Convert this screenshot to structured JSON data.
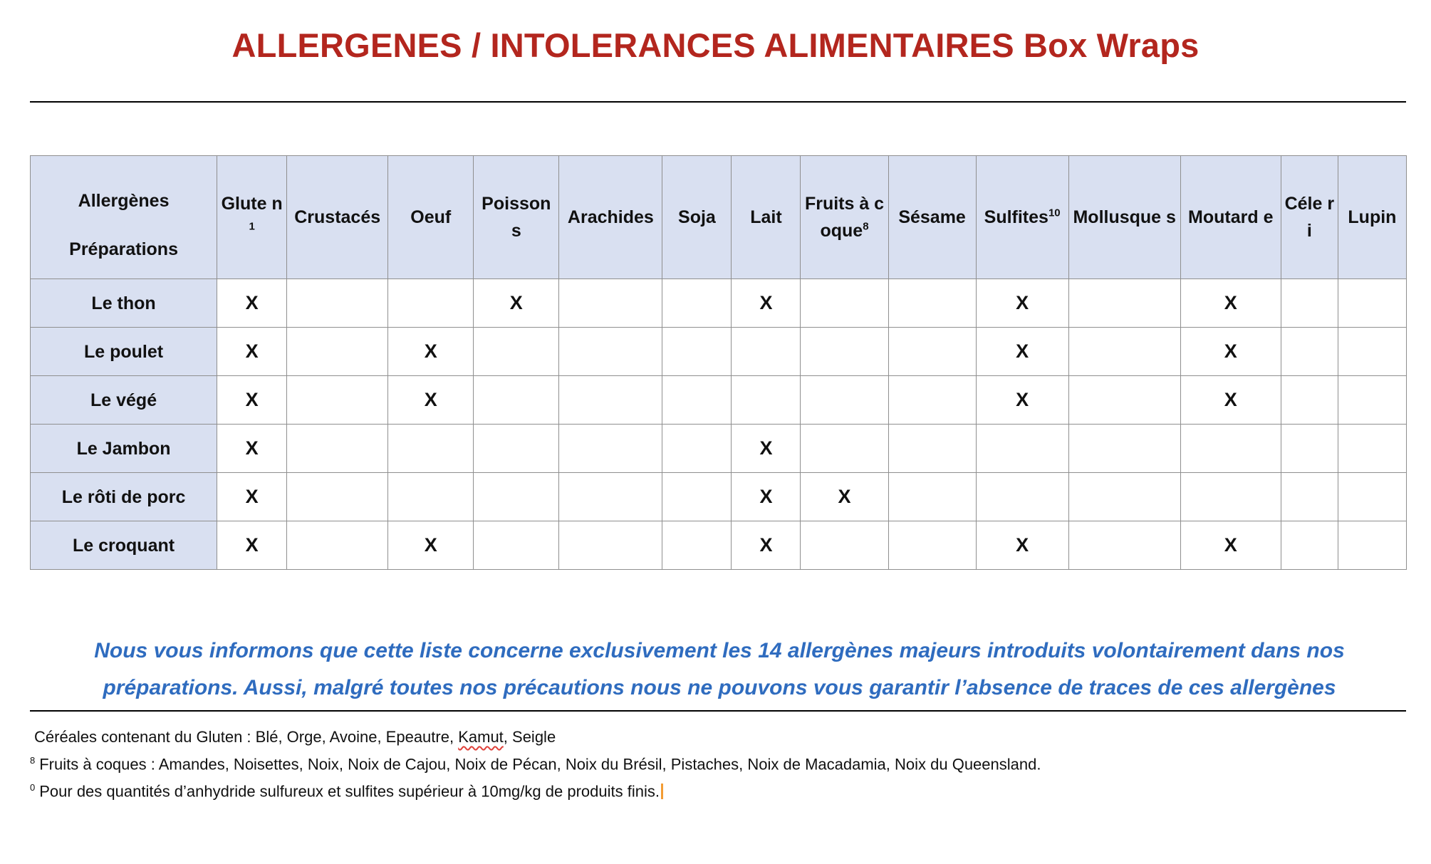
{
  "title": "ALLERGENES / INTOLERANCES ALIMENTAIRES Box Wraps",
  "table": {
    "corner_top": "Allergènes",
    "corner_bottom": "Préparations",
    "columns": [
      {
        "label": "Glute n",
        "sup": "1"
      },
      {
        "label": "Crustacés",
        "sup": ""
      },
      {
        "label": "Oeuf",
        "sup": ""
      },
      {
        "label": "Poisson s",
        "sup": ""
      },
      {
        "label": "Arachides",
        "sup": ""
      },
      {
        "label": "Soja",
        "sup": ""
      },
      {
        "label": "Lait",
        "sup": ""
      },
      {
        "label": "Fruits à coque",
        "sup": "8"
      },
      {
        "label": "Sésame",
        "sup": ""
      },
      {
        "label": "Sulfites",
        "sup": "10"
      },
      {
        "label": "Mollusque s",
        "sup": ""
      },
      {
        "label": "Moutard e",
        "sup": ""
      },
      {
        "label": "Céle ri",
        "sup": ""
      },
      {
        "label": "Lupin",
        "sup": ""
      }
    ],
    "mark_symbol": "X",
    "rows": [
      {
        "name": "Le thon",
        "marks": [
          1,
          0,
          0,
          1,
          0,
          0,
          1,
          0,
          0,
          1,
          0,
          1,
          0,
          0
        ]
      },
      {
        "name": "Le poulet",
        "marks": [
          1,
          0,
          1,
          0,
          0,
          0,
          0,
          0,
          0,
          1,
          0,
          1,
          0,
          0
        ]
      },
      {
        "name": "Le végé",
        "marks": [
          1,
          0,
          1,
          0,
          0,
          0,
          0,
          0,
          0,
          1,
          0,
          1,
          0,
          0
        ]
      },
      {
        "name": "Le Jambon",
        "marks": [
          1,
          0,
          0,
          0,
          0,
          0,
          1,
          0,
          0,
          0,
          0,
          0,
          0,
          0
        ]
      },
      {
        "name": "Le rôti de porc",
        "marks": [
          1,
          0,
          0,
          0,
          0,
          0,
          1,
          1,
          0,
          0,
          0,
          0,
          0,
          0
        ]
      },
      {
        "name": "Le croquant",
        "marks": [
          1,
          0,
          1,
          0,
          0,
          0,
          1,
          0,
          0,
          1,
          0,
          1,
          0,
          0
        ]
      }
    ]
  },
  "notice": "Nous vous informons que cette liste concerne exclusivement les 14 allergènes majeurs introduits volontairement dans nos préparations. Aussi, malgré toutes nos précautions nous ne pouvons vous garantir l’absence de traces de ces allergènes",
  "notes": {
    "gluten_prefix": "Céréales contenant du Gluten : Blé, Orge, Avoine, Epeautre, ",
    "gluten_flagged": "Kamut",
    "gluten_suffix": ", Seigle",
    "nuts_marker": "8",
    "nuts": "Fruits à coques : Amandes, Noisettes, Noix, Noix de Cajou, Noix de Pécan, Noix du Brésil, Pistaches, Noix de Macadamia, Noix du Queensland.",
    "sulfites_marker": "0",
    "sulfites": "Pour des quantités d’anhydride sulfureux et sulfites supérieur à 10mg/kg de produits finis."
  }
}
